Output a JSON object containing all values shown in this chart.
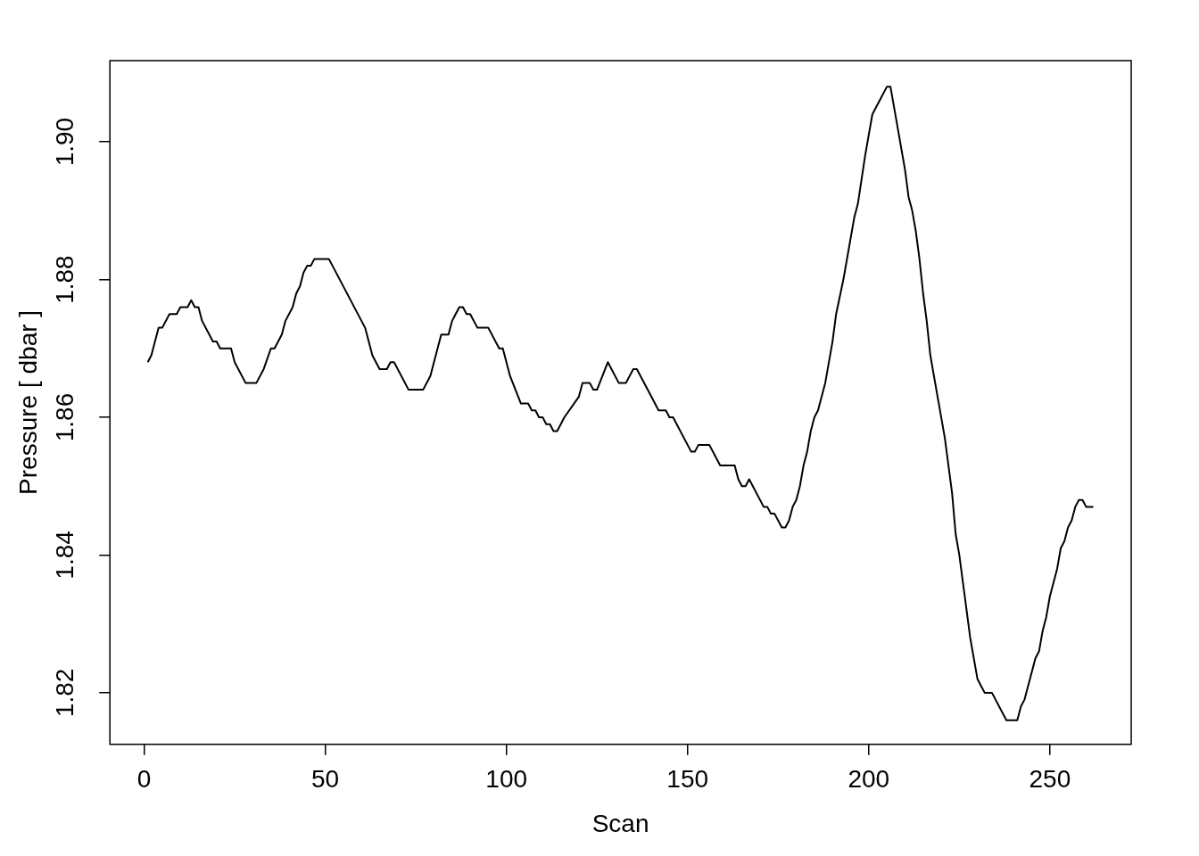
{
  "chart_data": {
    "type": "line",
    "xlabel": "Scan",
    "ylabel": "Pressure [ dbar ]",
    "xlim": [
      -9.44,
      272.44
    ],
    "xticks": [
      0,
      50,
      100,
      150,
      200,
      250
    ],
    "ylim": [
      1.8125,
      1.9118
    ],
    "yticks": [
      {
        "value": 1.82,
        "label": "1.82"
      },
      {
        "value": 1.84,
        "label": "1.84"
      },
      {
        "value": 1.86,
        "label": "1.86"
      },
      {
        "value": 1.88,
        "label": "1.88"
      },
      {
        "value": 1.9,
        "label": "1.90"
      }
    ],
    "grid": false,
    "legend": false,
    "marker": "none",
    "line_style": "solid",
    "series": [
      {
        "color": "#000000",
        "x": [
          1,
          2,
          4,
          5,
          7,
          9,
          10,
          12,
          13,
          14,
          15,
          16,
          19,
          20,
          21,
          24,
          25,
          28,
          31,
          33,
          35,
          36,
          38,
          39,
          41,
          42,
          43,
          44,
          45,
          46,
          47,
          51,
          61,
          63,
          65,
          67,
          68,
          69,
          73,
          77,
          79,
          82,
          84,
          85,
          87,
          88,
          89,
          90,
          92,
          95,
          98,
          99,
          101,
          104,
          106,
          107,
          108,
          109,
          110,
          111,
          112,
          113,
          114,
          116,
          120,
          121,
          123,
          124,
          125,
          128,
          131,
          133,
          135,
          136,
          140,
          142,
          144,
          145,
          146,
          151,
          152,
          153,
          156,
          159,
          163,
          164,
          165,
          166,
          167,
          171,
          172,
          173,
          174,
          176,
          177,
          178,
          179,
          180,
          181,
          182,
          183,
          184,
          185,
          186,
          188,
          190,
          191,
          193,
          195,
          196,
          197,
          199,
          201,
          203,
          205,
          206,
          208,
          209,
          210,
          211,
          212,
          213,
          214,
          215,
          216,
          217,
          219,
          221,
          222,
          223,
          224,
          225,
          226,
          227,
          228,
          229,
          230,
          231,
          232,
          233,
          234,
          238,
          239,
          241,
          242,
          243,
          245,
          246,
          247,
          248,
          249,
          250,
          252,
          253,
          254,
          255,
          256,
          257,
          258,
          259,
          260,
          262
        ],
        "values": [
          1.868,
          1.869,
          1.873,
          1.873,
          1.875,
          1.875,
          1.876,
          1.876,
          1.877,
          1.876,
          1.876,
          1.874,
          1.871,
          1.871,
          1.87,
          1.87,
          1.868,
          1.865,
          1.865,
          1.867,
          1.87,
          1.87,
          1.872,
          1.874,
          1.876,
          1.878,
          1.879,
          1.881,
          1.882,
          1.882,
          1.883,
          1.883,
          1.873,
          1.869,
          1.867,
          1.867,
          1.868,
          1.868,
          1.864,
          1.864,
          1.866,
          1.872,
          1.872,
          1.874,
          1.876,
          1.876,
          1.875,
          1.875,
          1.873,
          1.873,
          1.87,
          1.87,
          1.866,
          1.862,
          1.862,
          1.861,
          1.861,
          1.86,
          1.86,
          1.859,
          1.859,
          1.858,
          1.858,
          1.86,
          1.863,
          1.865,
          1.865,
          1.864,
          1.864,
          1.868,
          1.865,
          1.865,
          1.867,
          1.867,
          1.863,
          1.861,
          1.861,
          1.86,
          1.86,
          1.855,
          1.855,
          1.856,
          1.856,
          1.853,
          1.853,
          1.851,
          1.85,
          1.85,
          1.851,
          1.847,
          1.847,
          1.846,
          1.846,
          1.844,
          1.844,
          1.845,
          1.847,
          1.848,
          1.85,
          1.853,
          1.855,
          1.858,
          1.86,
          1.861,
          1.865,
          1.871,
          1.875,
          1.88,
          1.886,
          1.889,
          1.891,
          1.898,
          1.904,
          1.906,
          1.908,
          1.908,
          1.902,
          1.899,
          1.896,
          1.892,
          1.89,
          1.887,
          1.883,
          1.878,
          1.874,
          1.869,
          1.863,
          1.857,
          1.853,
          1.849,
          1.843,
          1.84,
          1.836,
          1.832,
          1.828,
          1.825,
          1.822,
          1.821,
          1.82,
          1.82,
          1.82,
          1.816,
          1.816,
          1.816,
          1.818,
          1.819,
          1.823,
          1.825,
          1.826,
          1.829,
          1.831,
          1.834,
          1.838,
          1.841,
          1.842,
          1.844,
          1.845,
          1.847,
          1.848,
          1.848,
          1.847,
          1.847
        ]
      }
    ]
  }
}
